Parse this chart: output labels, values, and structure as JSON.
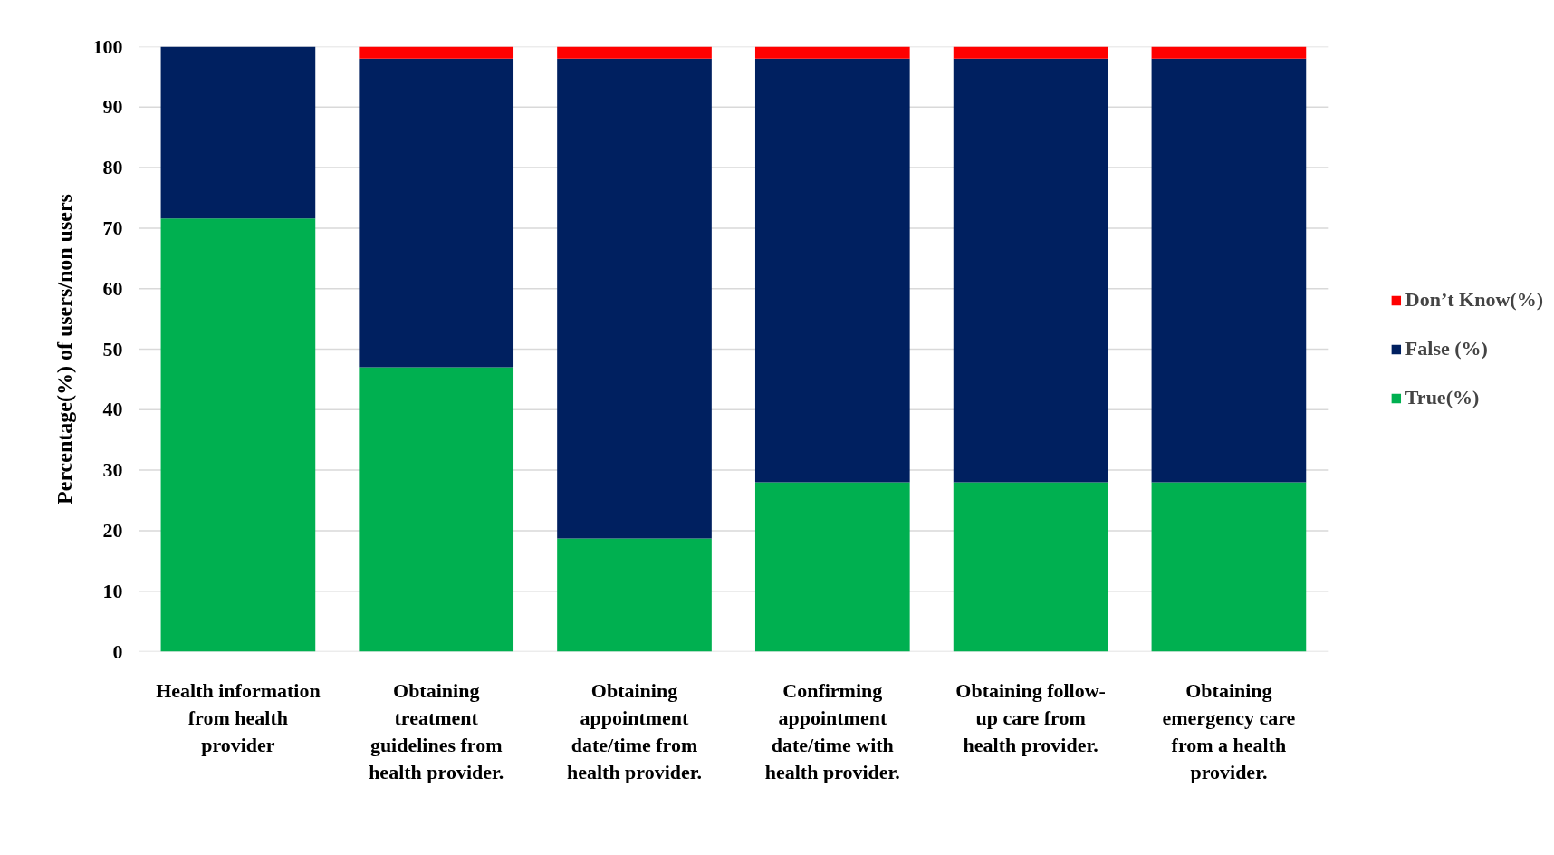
{
  "chart_data": {
    "type": "bar",
    "stacked": true,
    "ylabel": "Percentage(%) of users/non users",
    "categories": [
      "Health information from health provider",
      "Obtaining treatment guidelines from health provider.",
      "Obtaining appointment date/time from health provider.",
      "Confirming appointment date/time with health provider.",
      "Obtaining follow-up care from health provider.",
      "Obtaining emergency care from a health provider."
    ],
    "series": [
      {
        "name": "True(%)",
        "color": "#00b050",
        "values": [
          71.6,
          47,
          18.7,
          28,
          28,
          28
        ]
      },
      {
        "name": "False (%)",
        "color": "#002060",
        "values": [
          28.4,
          51,
          79.3,
          70,
          70,
          70
        ]
      },
      {
        "name": "Don’t Know(%)",
        "color": "#ff0000",
        "values": [
          null,
          2,
          2,
          2,
          2,
          2
        ]
      }
    ],
    "ylim": [
      0,
      100
    ],
    "yticks": [
      0,
      10,
      20,
      30,
      40,
      50,
      60,
      70,
      80,
      90,
      100
    ],
    "grid": "y",
    "legend": "right"
  }
}
